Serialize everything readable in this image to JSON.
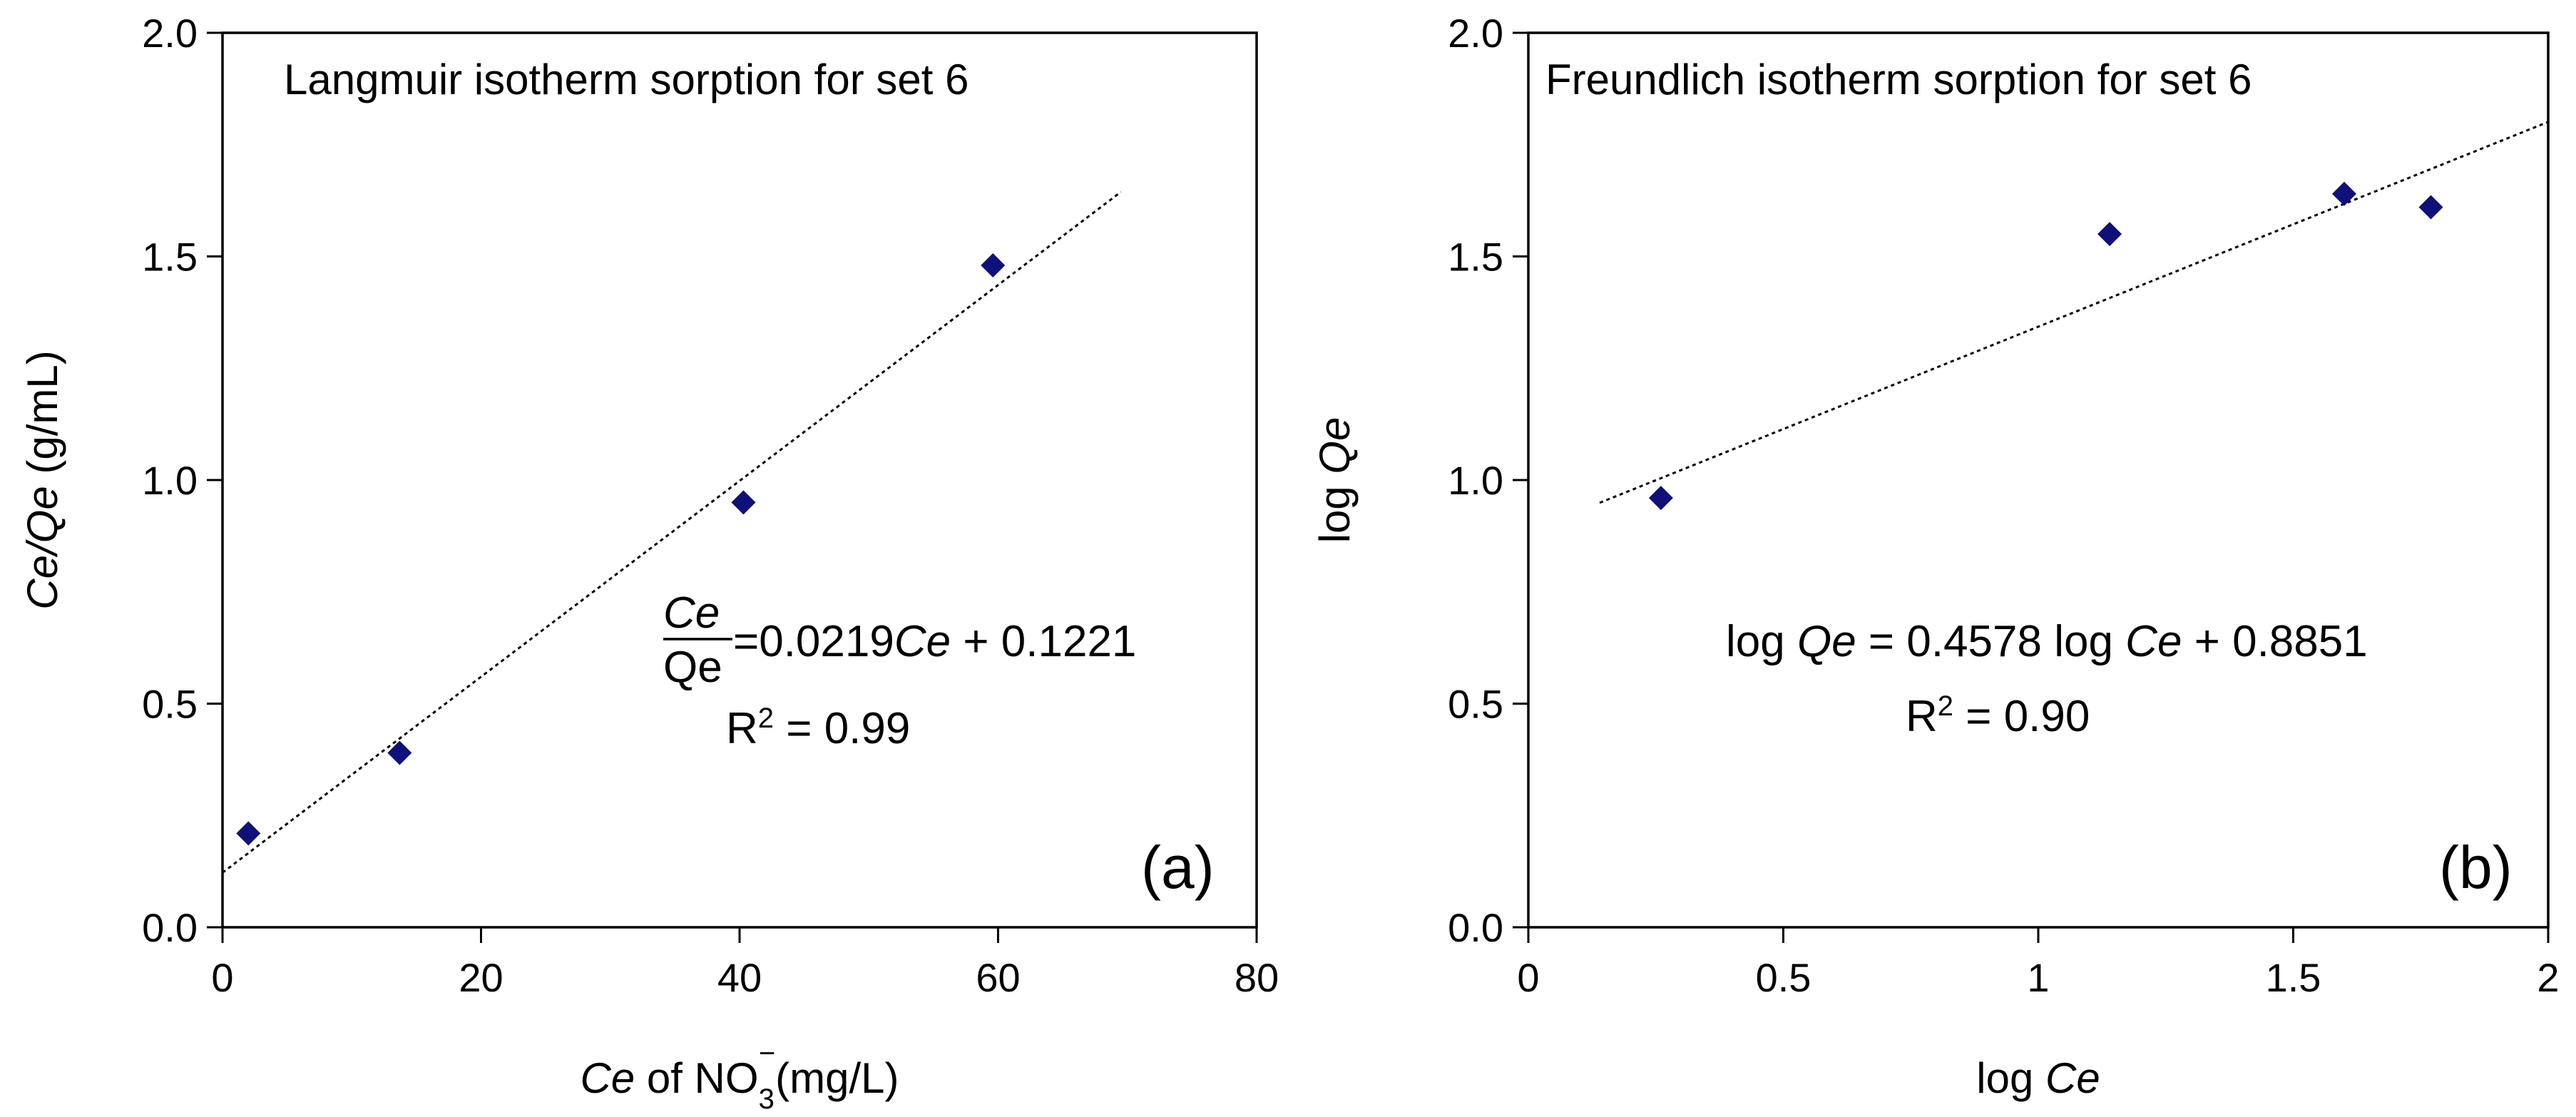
{
  "chart_data": [
    {
      "type": "scatter",
      "title": "Langmuir isotherm sorption  for set  6",
      "panel_label": "(a)",
      "xlabel": {
        "italic": "Ce",
        "pre": " of NO",
        "sub": "3",
        "sup": "−",
        "post": "(mg/L)"
      },
      "ylabel": {
        "italic": "Ce/Qe",
        "post": "  (g/mL)"
      },
      "xlim": [
        0,
        80
      ],
      "ylim": [
        0,
        2.0
      ],
      "xticks": [
        0,
        20,
        40,
        60,
        80
      ],
      "yticks": [
        0,
        0.5,
        1.0,
        1.5,
        2.0
      ],
      "xtick_labels": [
        "0",
        "20",
        "40",
        "60",
        "80"
      ],
      "ytick_labels": [
        "0.0",
        "0.5",
        "1.0",
        "1.5",
        "2.0"
      ],
      "grid": false,
      "marker_color": "#10107a",
      "points": [
        {
          "x": 2.0,
          "y": 0.21
        },
        {
          "x": 13.7,
          "y": 0.39
        },
        {
          "x": 40.3,
          "y": 0.95
        },
        {
          "x": 59.6,
          "y": 1.48
        }
      ],
      "trendline": {
        "slope": 0.0219,
        "intercept": 0.1221,
        "x_start": 0,
        "x_end": 69.5
      },
      "equation": {
        "num": "Ce",
        "den": "Qe",
        "rhs_a": "=0.0219",
        "rhs_italic": "Ce",
        "rhs_b": " + 0.1221",
        "r2_pre": "R",
        "r2_sup": "2",
        "r2_post": " = 0.99"
      }
    },
    {
      "type": "scatter",
      "title": "Freundlich isotherm sorption  for set  6",
      "panel_label": "(b)",
      "xlabel": {
        "pre": "log ",
        "italic": "Ce"
      },
      "ylabel": {
        "pre": "log ",
        "italic": "Qe"
      },
      "xlim": [
        0,
        2
      ],
      "ylim": [
        0,
        2.0
      ],
      "xticks": [
        0,
        0.5,
        1,
        1.5,
        2
      ],
      "yticks": [
        0,
        0.5,
        1.0,
        1.5,
        2.0
      ],
      "xtick_labels": [
        "0",
        "0.5",
        "1",
        "1.5",
        "2"
      ],
      "ytick_labels": [
        "0.0",
        "0.5",
        "1.0",
        "1.5",
        "2.0"
      ],
      "grid": false,
      "marker_color": "#10107a",
      "points": [
        {
          "x": 0.26,
          "y": 0.96
        },
        {
          "x": 1.14,
          "y": 1.55
        },
        {
          "x": 1.6,
          "y": 1.64
        },
        {
          "x": 1.77,
          "y": 1.61
        }
      ],
      "trendline": {
        "slope": 0.4578,
        "intercept": 0.8851,
        "x_start": 0.14,
        "x_end": 2.0
      },
      "equation": {
        "pre": "log ",
        "italic1": "Qe",
        "mid": " = 0.4578 log ",
        "italic2": "Ce",
        "post": " + 0.8851",
        "r2_pre": "R",
        "r2_sup": "2",
        "r2_post": " = 0.90"
      }
    }
  ]
}
